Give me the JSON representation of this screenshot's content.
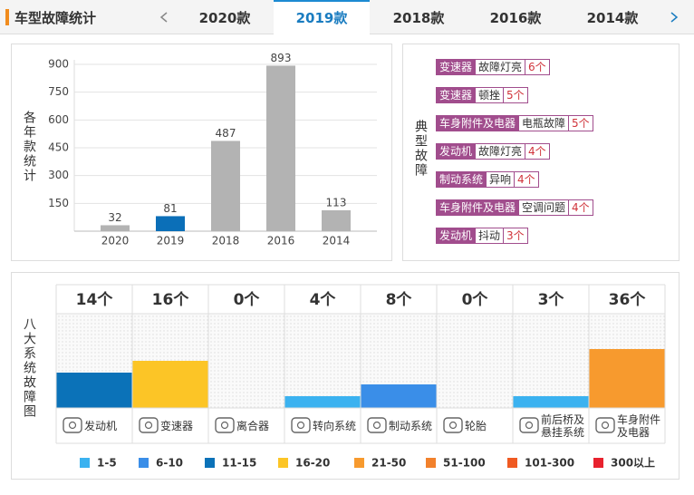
{
  "header": {
    "title": "车型故障统计",
    "tabs": [
      "2020款",
      "2019款",
      "2018款",
      "2016款",
      "2014款"
    ],
    "active_tab": 1
  },
  "chart_data": [
    {
      "type": "bar",
      "ylabel": "各年款统计",
      "categories": [
        "2020",
        "2019",
        "2018",
        "2016",
        "2014"
      ],
      "values": [
        32,
        81,
        487,
        893,
        113
      ],
      "colors": [
        "#b3b3b3",
        "#0b6fb8",
        "#b3b3b3",
        "#b3b3b3",
        "#b3b3b3"
      ],
      "ylim": [
        0,
        900
      ],
      "yticks": [
        150,
        300,
        450,
        600,
        750,
        900
      ],
      "grid": true
    },
    {
      "type": "binbar",
      "ylabel": "八大系统故障图",
      "categories": [
        "发动机",
        "变速器",
        "离合器",
        "转向系统",
        "制动系统",
        "轮胎",
        "前后桥及悬挂系统",
        "车身附件及电器"
      ],
      "values": [
        14,
        16,
        0,
        4,
        8,
        0,
        3,
        36
      ],
      "value_labels": [
        "14个",
        "16个",
        "0个",
        "4个",
        "8个",
        "0个",
        "3个",
        "36个"
      ],
      "legend": [
        {
          "label": "1-5",
          "from": 1,
          "color": "#3bb2f0"
        },
        {
          "label": "6-10",
          "from": 6,
          "color": "#3a8ee8"
        },
        {
          "label": "11-15",
          "from": 11,
          "color": "#0b72b8"
        },
        {
          "label": "16-20",
          "from": 16,
          "color": "#fcc526"
        },
        {
          "label": "21-50",
          "from": 21,
          "color": "#f79a2e"
        },
        {
          "label": "51-100",
          "from": 51,
          "color": "#f2812c"
        },
        {
          "label": "101-300",
          "from": 101,
          "color": "#f05a22"
        },
        {
          "label": "300以上",
          "from": 300,
          "color": "#e8222e"
        }
      ]
    }
  ],
  "typical_faults": {
    "label": "典型故障",
    "items": [
      {
        "system": "变速器",
        "fault": "故障灯亮",
        "count": "6个"
      },
      {
        "system": "变速器",
        "fault": "顿挫",
        "count": "5个"
      },
      {
        "system": "车身附件及电器",
        "fault": "电瓶故障",
        "count": "5个"
      },
      {
        "system": "发动机",
        "fault": "故障灯亮",
        "count": "4个"
      },
      {
        "system": "制动系统",
        "fault": "异响",
        "count": "4个"
      },
      {
        "system": "车身附件及电器",
        "fault": "空调问题",
        "count": "4个"
      },
      {
        "system": "发动机",
        "fault": "抖动",
        "count": "3个"
      }
    ]
  }
}
